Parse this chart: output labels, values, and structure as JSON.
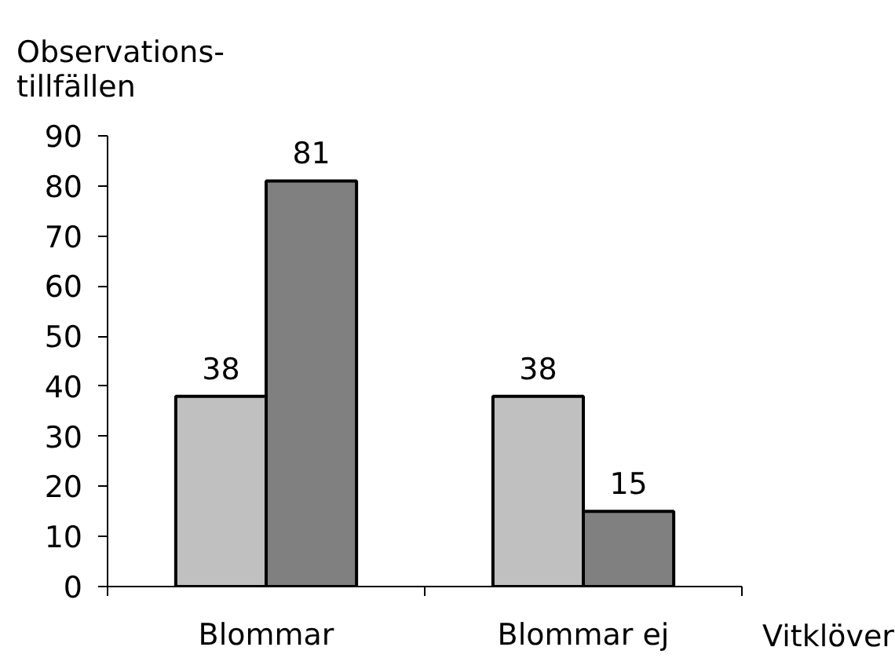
{
  "chart_data": {
    "type": "bar",
    "ylabel": "Observations-\ntillfällen",
    "xlabel": "Vitklöver",
    "categories": [
      "Blommar",
      "Blommar ej"
    ],
    "series": [
      {
        "color": "#c0c0c0",
        "values": [
          38,
          38
        ]
      },
      {
        "color": "#808080",
        "values": [
          81,
          15
        ]
      }
    ],
    "ylim": [
      0,
      90
    ],
    "yticks": [
      0,
      10,
      20,
      30,
      40,
      50,
      60,
      70,
      80,
      90
    ],
    "data_labels": true
  }
}
